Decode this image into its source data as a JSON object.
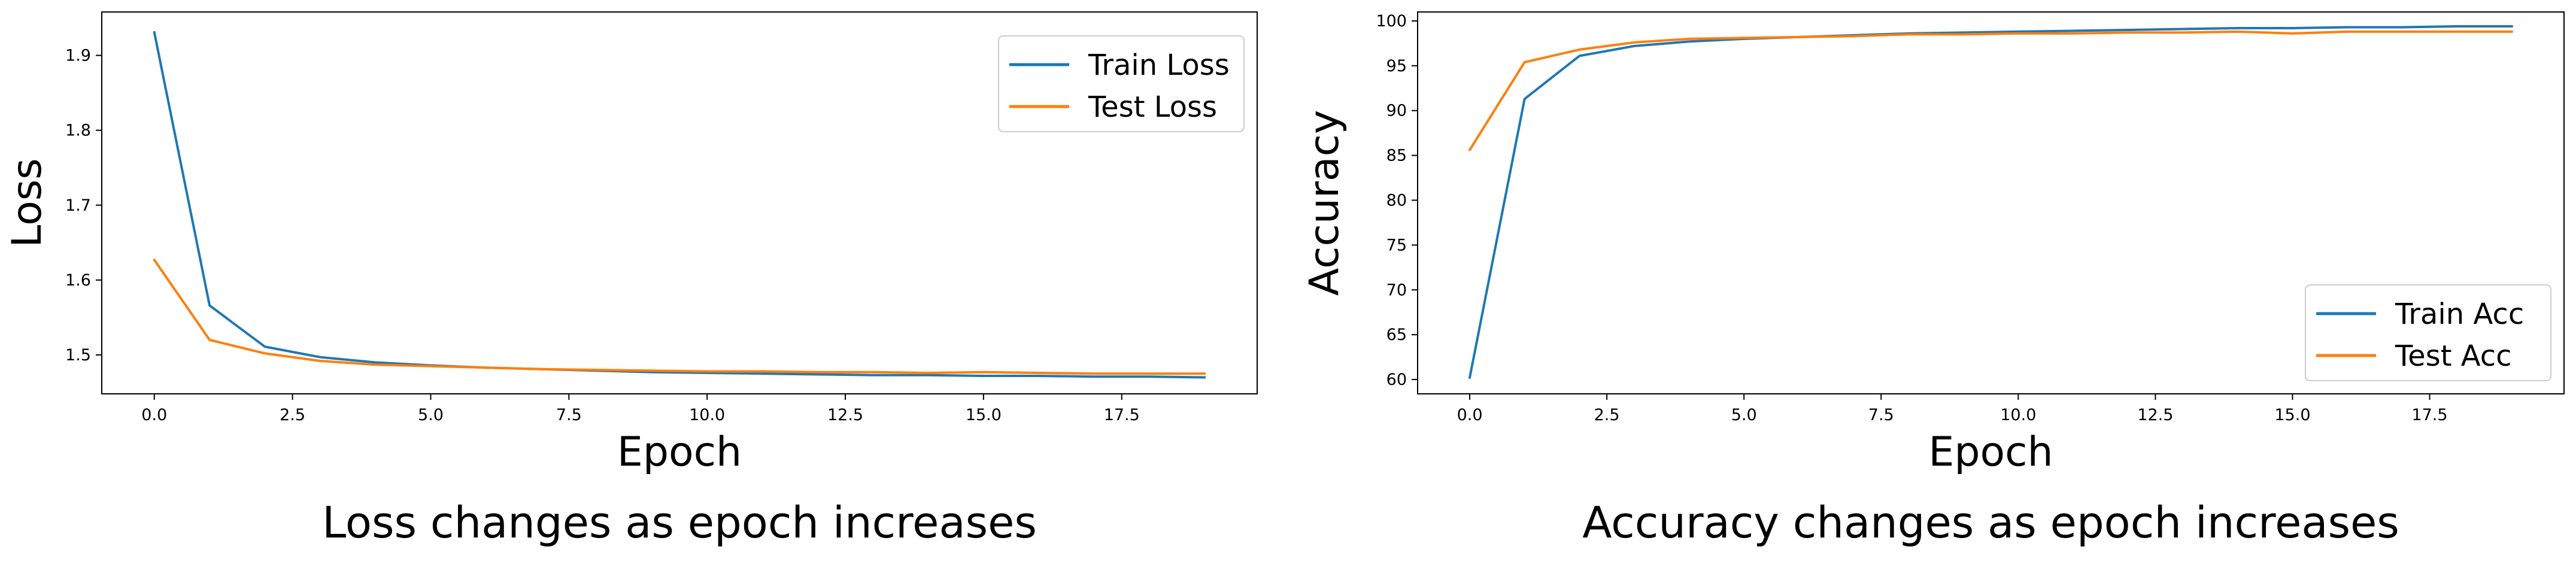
{
  "chart_data": [
    {
      "type": "line",
      "title": "",
      "caption": "Loss changes as epoch increases",
      "xlabel": "Epoch",
      "ylabel": "Loss",
      "x": [
        0,
        1,
        2,
        3,
        4,
        5,
        6,
        7,
        8,
        9,
        10,
        11,
        12,
        13,
        14,
        15,
        16,
        17,
        18,
        19
      ],
      "xlim": [
        -0.95,
        19.95
      ],
      "ylim": [
        1.448,
        1.958
      ],
      "xticks": [
        0.0,
        2.5,
        5.0,
        7.5,
        10.0,
        12.5,
        15.0,
        17.5
      ],
      "xtick_labels": [
        "0.0",
        "2.5",
        "5.0",
        "7.5",
        "10.0",
        "12.5",
        "15.0",
        "17.5"
      ],
      "yticks": [
        1.5,
        1.6,
        1.7,
        1.8,
        1.9
      ],
      "ytick_labels": [
        "1.5",
        "1.6",
        "1.7",
        "1.8",
        "1.9"
      ],
      "legend_position": "upper right",
      "series": [
        {
          "name": "Train Loss",
          "color": "#1f77b4",
          "values": [
            1.931,
            1.566,
            1.511,
            1.497,
            1.49,
            1.486,
            1.483,
            1.481,
            1.479,
            1.477,
            1.476,
            1.475,
            1.474,
            1.473,
            1.473,
            1.472,
            1.472,
            1.471,
            1.471,
            1.47
          ]
        },
        {
          "name": "Test Loss",
          "color": "#ff7f0e",
          "values": [
            1.627,
            1.52,
            1.502,
            1.492,
            1.487,
            1.485,
            1.483,
            1.481,
            1.48,
            1.479,
            1.478,
            1.478,
            1.477,
            1.477,
            1.476,
            1.477,
            1.476,
            1.475,
            1.475,
            1.475
          ]
        }
      ]
    },
    {
      "type": "line",
      "title": "",
      "caption": "Accuracy changes as epoch increases",
      "xlabel": "Epoch",
      "ylabel": "Accuracy",
      "x": [
        0,
        1,
        2,
        3,
        4,
        5,
        6,
        7,
        8,
        9,
        10,
        11,
        12,
        13,
        14,
        15,
        16,
        17,
        18,
        19
      ],
      "xlim": [
        -0.95,
        19.95
      ],
      "ylim": [
        58.4,
        101.0
      ],
      "xticks": [
        0.0,
        2.5,
        5.0,
        7.5,
        10.0,
        12.5,
        15.0,
        17.5
      ],
      "xtick_labels": [
        "0.0",
        "2.5",
        "5.0",
        "7.5",
        "10.0",
        "12.5",
        "15.0",
        "17.5"
      ],
      "yticks": [
        60,
        65,
        70,
        75,
        80,
        85,
        90,
        95,
        100
      ],
      "ytick_labels": [
        "60",
        "65",
        "70",
        "75",
        "80",
        "85",
        "90",
        "95",
        "100"
      ],
      "legend_position": "lower right",
      "series": [
        {
          "name": "Train Acc",
          "color": "#1f77b4",
          "values": [
            60.2,
            91.3,
            96.1,
            97.2,
            97.7,
            98.0,
            98.2,
            98.4,
            98.6,
            98.7,
            98.8,
            98.9,
            99.0,
            99.1,
            99.2,
            99.2,
            99.3,
            99.3,
            99.4,
            99.4
          ]
        },
        {
          "name": "Test Acc",
          "color": "#ff7f0e",
          "values": [
            85.6,
            95.4,
            96.8,
            97.6,
            98.0,
            98.1,
            98.2,
            98.3,
            98.5,
            98.5,
            98.6,
            98.6,
            98.7,
            98.7,
            98.8,
            98.6,
            98.8,
            98.8,
            98.8,
            98.8
          ]
        }
      ]
    }
  ]
}
